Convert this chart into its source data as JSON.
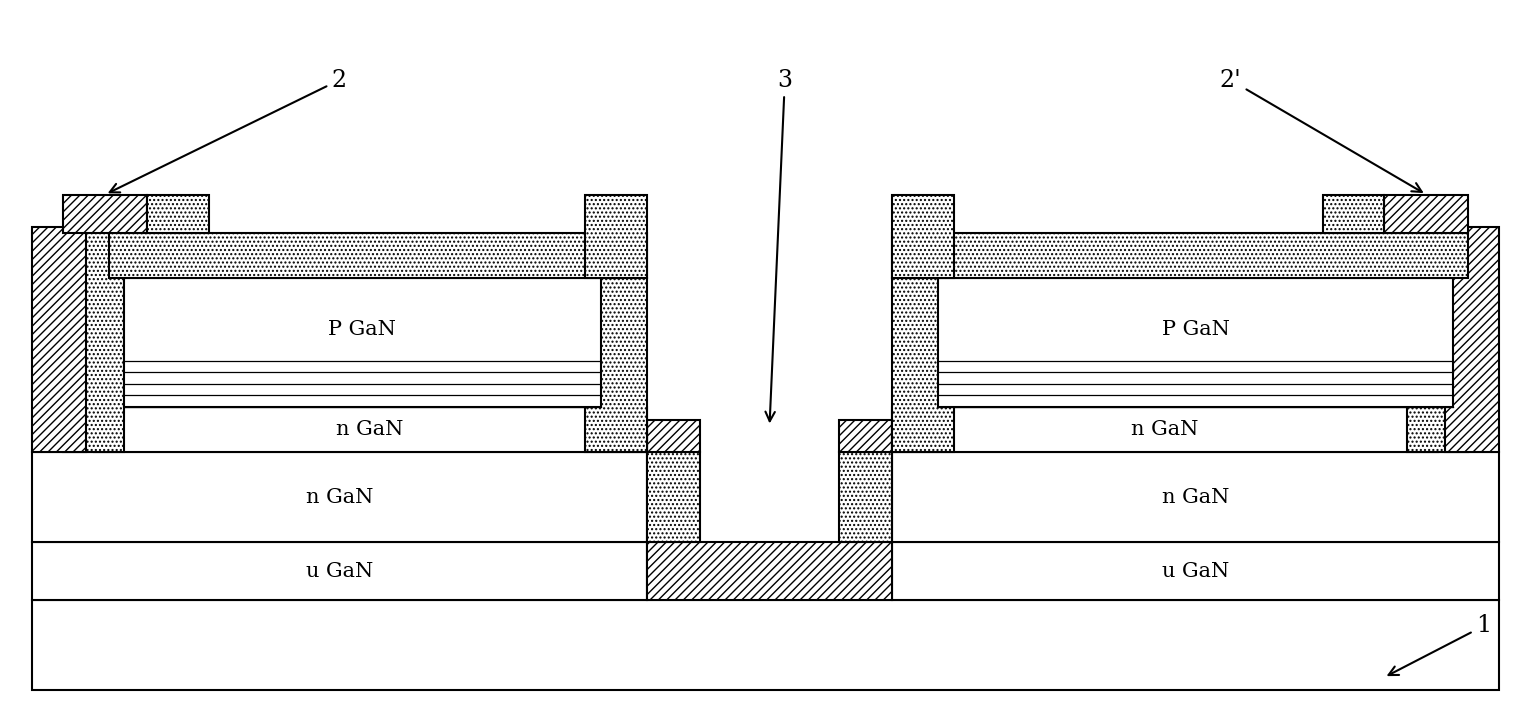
{
  "fig_width": 15.39,
  "fig_height": 7.11,
  "bg_color": "#ffffff",
  "line_color": "#000000",
  "hatch_diagonal": "////",
  "hatch_dot": "....",
  "labels": {
    "label2": "2",
    "label3": "3",
    "label2prime": "2’",
    "label1": "1",
    "pgan": "P GaN",
    "ngan_top": "n GaN",
    "ngan_base": "n GaN",
    "ugan": "u GaN"
  },
  "font_size": 15,
  "label_font_size": 17
}
